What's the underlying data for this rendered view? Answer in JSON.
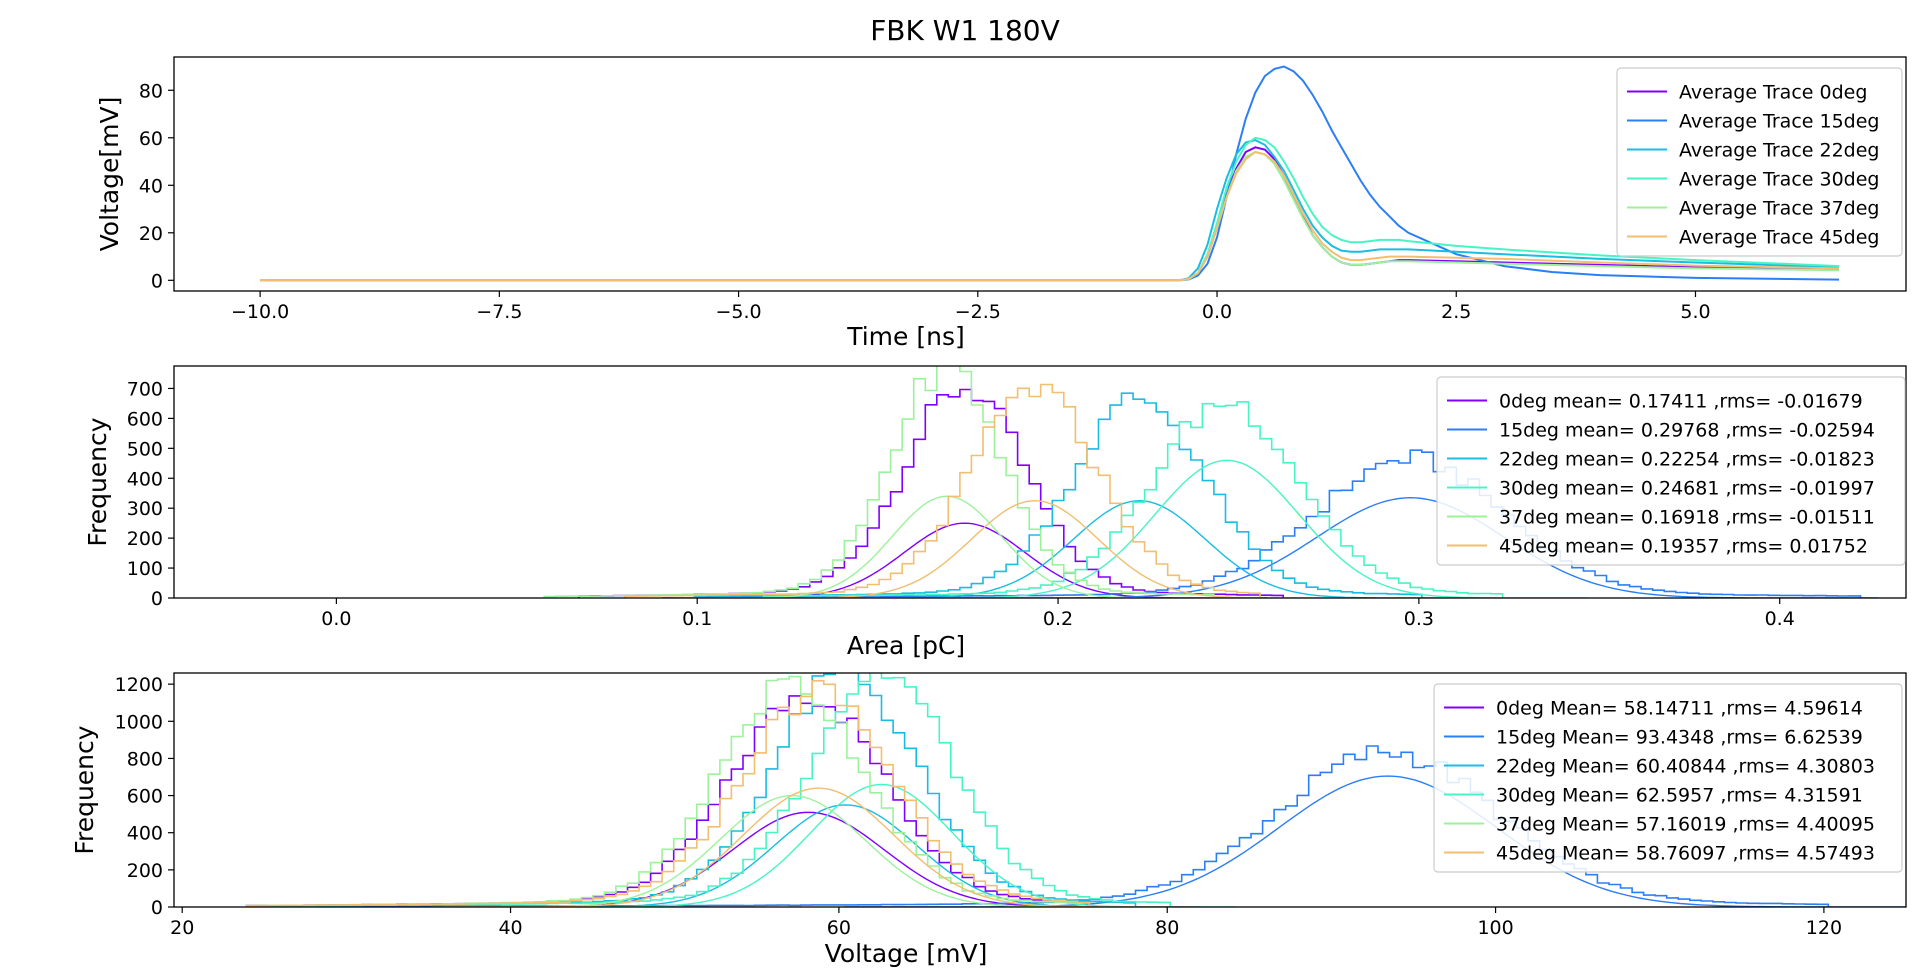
{
  "figure_title": "FBK W1 180V",
  "chart_data": [
    {
      "type": "line",
      "xlabel": "Time [ns]",
      "ylabel": "Voltage[mV]",
      "xlim": [
        -10.9,
        7.2
      ],
      "ylim": [
        -4.5,
        94
      ],
      "xticks": [
        -10.0,
        -7.5,
        -5.0,
        -2.5,
        0.0,
        2.5,
        5.0
      ],
      "xtick_labels": [
        "−10.0",
        "−7.5",
        "−5.0",
        "−2.5",
        "0.0",
        "2.5",
        "5.0"
      ],
      "yticks": [
        0,
        20,
        40,
        60,
        80
      ],
      "ytick_labels": [
        "0",
        "20",
        "40",
        "60",
        "80"
      ],
      "legend_position": "top-right",
      "grid": false,
      "series": [
        {
          "name": "Average Trace 0deg",
          "color": "#8000ff",
          "x": [
            -10,
            -0.4,
            -0.3,
            -0.2,
            -0.1,
            0.0,
            0.1,
            0.2,
            0.3,
            0.4,
            0.5,
            0.6,
            0.7,
            0.8,
            0.9,
            1.0,
            1.1,
            1.2,
            1.3,
            1.4,
            1.5,
            1.6,
            1.7,
            1.8,
            1.9,
            2.0,
            2.5,
            3.0,
            4.0,
            5.0,
            6.5
          ],
          "y": [
            0,
            0,
            0.5,
            3,
            10,
            22,
            36,
            47,
            54,
            56,
            55,
            51,
            44,
            35,
            27,
            19,
            14,
            10,
            7.5,
            6.5,
            6.5,
            7,
            7.5,
            8,
            8.5,
            8.5,
            8,
            7.5,
            6.5,
            5.5,
            4.5
          ]
        },
        {
          "name": "Average Trace 15deg",
          "color": "#2c7ef7",
          "x": [
            -10,
            -0.4,
            -0.3,
            -0.2,
            -0.1,
            0.0,
            0.1,
            0.2,
            0.3,
            0.4,
            0.5,
            0.6,
            0.7,
            0.8,
            0.9,
            1.0,
            1.1,
            1.2,
            1.3,
            1.4,
            1.5,
            1.6,
            1.7,
            1.8,
            1.9,
            2.0,
            2.5,
            3.0,
            3.5,
            4.0,
            5.0,
            6.5
          ],
          "y": [
            0,
            0,
            0.3,
            2,
            7,
            18,
            35,
            53,
            68,
            79,
            86,
            89,
            90,
            88,
            84,
            78,
            71,
            63,
            56,
            49,
            42,
            36,
            31,
            27,
            23,
            20,
            11,
            6,
            3.5,
            2.2,
            1,
            0.3
          ]
        },
        {
          "name": "Average Trace 22deg",
          "color": "#18bde1",
          "x": [
            -10,
            -0.4,
            -0.3,
            -0.2,
            -0.1,
            0.0,
            0.1,
            0.2,
            0.3,
            0.4,
            0.5,
            0.6,
            0.7,
            0.8,
            0.9,
            1.0,
            1.1,
            1.2,
            1.3,
            1.4,
            1.5,
            1.6,
            1.7,
            1.8,
            1.9,
            2.0,
            2.5,
            3.0,
            4.0,
            5.0,
            6.5
          ],
          "y": [
            0,
            0,
            0.8,
            5,
            15,
            30,
            43,
            53,
            58,
            59,
            57,
            52,
            46,
            38,
            30,
            23,
            18,
            14.5,
            12.5,
            12,
            12,
            12.5,
            13,
            13,
            13,
            13,
            12,
            11,
            9,
            7.5,
            5.5
          ]
        },
        {
          "name": "Average Trace 30deg",
          "color": "#48f4c4",
          "x": [
            -10,
            -0.4,
            -0.3,
            -0.2,
            -0.1,
            0.0,
            0.1,
            0.2,
            0.3,
            0.4,
            0.5,
            0.6,
            0.7,
            0.8,
            0.9,
            1.0,
            1.1,
            1.2,
            1.3,
            1.4,
            1.5,
            1.6,
            1.7,
            1.8,
            1.9,
            2.0,
            2.5,
            3.0,
            4.0,
            5.0,
            6.5
          ],
          "y": [
            0,
            0,
            0.4,
            3,
            11,
            24,
            39,
            50,
            57,
            60,
            59,
            56,
            50,
            43,
            35,
            28,
            22.5,
            19,
            17,
            16,
            16,
            16.5,
            17,
            17,
            17,
            16.5,
            14.5,
            13,
            10.5,
            8.5,
            6
          ]
        },
        {
          "name": "Average Trace 37deg",
          "color": "#9cf29a",
          "x": [
            -10,
            -0.4,
            -0.3,
            -0.2,
            -0.1,
            0.0,
            0.1,
            0.2,
            0.3,
            0.4,
            0.5,
            0.6,
            0.7,
            0.8,
            0.9,
            1.0,
            1.1,
            1.2,
            1.3,
            1.4,
            1.5,
            1.6,
            1.7,
            1.8,
            1.9,
            2.0,
            2.5,
            3.0,
            4.0,
            5.0,
            6.5
          ],
          "y": [
            0,
            0,
            0.5,
            3,
            10,
            22,
            35,
            46,
            52,
            54,
            53,
            49,
            42,
            34,
            26,
            19,
            14,
            10,
            7.5,
            6.5,
            6.5,
            7,
            7.5,
            8,
            8,
            8,
            7.5,
            7,
            6,
            5,
            4.2
          ]
        },
        {
          "name": "Average Trace 45deg",
          "color": "#f2be6f",
          "x": [
            -10,
            -0.4,
            -0.3,
            -0.2,
            -0.1,
            0.0,
            0.1,
            0.2,
            0.3,
            0.4,
            0.5,
            0.6,
            0.7,
            0.8,
            0.9,
            1.0,
            1.1,
            1.2,
            1.3,
            1.4,
            1.5,
            1.6,
            1.7,
            1.8,
            1.9,
            2.0,
            2.5,
            3.0,
            4.0,
            5.0,
            6.5
          ],
          "y": [
            0,
            0,
            0.5,
            3,
            10,
            22,
            35,
            45,
            51,
            54,
            53,
            50,
            44,
            36,
            28,
            21,
            15.5,
            12,
            9.5,
            8.5,
            8.5,
            9,
            9.5,
            10,
            10,
            10,
            9.5,
            9,
            7.5,
            6.2,
            5
          ]
        }
      ]
    },
    {
      "type": "histogram",
      "xlabel": "Area [pC]",
      "ylabel": "Frequency",
      "xlim": [
        -0.045,
        0.435
      ],
      "ylim": [
        0,
        775
      ],
      "xticks": [
        0.0,
        0.1,
        0.2,
        0.3,
        0.4
      ],
      "xtick_labels": [
        "0.0",
        "0.1",
        "0.2",
        "0.3",
        "0.4"
      ],
      "yticks": [
        0,
        100,
        200,
        300,
        400,
        500,
        600,
        700
      ],
      "ytick_labels": [
        "0",
        "100",
        "200",
        "300",
        "400",
        "500",
        "600",
        "700"
      ],
      "legend_position": "top-right",
      "grid": false,
      "series": [
        {
          "name": "0deg mean= 0.17411 ,rms= -0.01679",
          "color": "#8000ff",
          "mean": 0.17411,
          "sigma": 0.01679,
          "peak": 665,
          "fit_peak": 250,
          "range": [
            0.07,
            0.26
          ]
        },
        {
          "name": "15deg mean= 0.29768 ,rms= -0.02594",
          "color": "#2c7ef7",
          "mean": 0.29768,
          "sigma": 0.02594,
          "peak": 440,
          "fit_peak": 335,
          "range": [
            0.1,
            0.42
          ]
        },
        {
          "name": "22deg mean= 0.22254 ,rms= -0.01823",
          "color": "#18bde1",
          "mean": 0.22254,
          "sigma": 0.01823,
          "peak": 630,
          "fit_peak": 325,
          "range": [
            0.1,
            0.3
          ]
        },
        {
          "name": "30deg mean= 0.24681 ,rms= -0.01997",
          "color": "#48f4c4",
          "mean": 0.24681,
          "sigma": 0.01997,
          "peak": 620,
          "fit_peak": 460,
          "range": [
            0.12,
            0.32
          ]
        },
        {
          "name": "37deg mean= 0.16918 ,rms= -0.01511",
          "color": "#9cf29a",
          "mean": 0.16918,
          "sigma": 0.01511,
          "peak": 735,
          "fit_peak": 340,
          "range": [
            0.06,
            0.24
          ]
        },
        {
          "name": "45deg mean= 0.19357 ,rms= 0.01752",
          "color": "#f2be6f",
          "mean": 0.19357,
          "sigma": 0.01752,
          "peak": 660,
          "fit_peak": 325,
          "range": [
            0.08,
            0.255
          ]
        }
      ]
    },
    {
      "type": "histogram",
      "xlabel": "Voltage [mV]",
      "ylabel": "Frequency",
      "xlim": [
        19.5,
        125
      ],
      "ylim": [
        0,
        1260
      ],
      "xticks": [
        20,
        40,
        60,
        80,
        100,
        120
      ],
      "xtick_labels": [
        "20",
        "40",
        "60",
        "80",
        "100",
        "120"
      ],
      "yticks": [
        0,
        200,
        400,
        600,
        800,
        1000,
        1200
      ],
      "ytick_labels": [
        "0",
        "200",
        "400",
        "600",
        "800",
        "1000",
        "1200"
      ],
      "legend_position": "top-right",
      "grid": false,
      "series": [
        {
          "name": "0deg Mean= 58.14711 ,rms= 4.59614",
          "color": "#8000ff",
          "mean": 58.14711,
          "sigma": 4.59614,
          "peak": 1090,
          "fit_peak": 510,
          "range": [
            24,
            75
          ]
        },
        {
          "name": "15deg Mean= 93.4348 ,rms= 6.62539",
          "color": "#2c7ef7",
          "mean": 93.4348,
          "sigma": 6.62539,
          "peak": 790,
          "fit_peak": 705,
          "range": [
            24,
            120
          ]
        },
        {
          "name": "22deg Mean= 60.40844 ,rms= 4.30803",
          "color": "#18bde1",
          "mean": 60.40844,
          "sigma": 4.30803,
          "peak": 1190,
          "fit_peak": 550,
          "range": [
            26,
            78
          ]
        },
        {
          "name": "30deg Mean= 62.5957 ,rms= 4.31591",
          "color": "#48f4c4",
          "mean": 62.5957,
          "sigma": 4.31591,
          "peak": 1200,
          "fit_peak": 660,
          "range": [
            28,
            80
          ]
        },
        {
          "name": "37deg Mean= 57.16019 ,rms= 4.40095",
          "color": "#9cf29a",
          "mean": 57.16019,
          "sigma": 4.40095,
          "peak": 1140,
          "fit_peak": 600,
          "range": [
            24,
            75
          ]
        },
        {
          "name": "45deg Mean= 58.76097 ,rms= 4.57493",
          "color": "#f2be6f",
          "mean": 58.76097,
          "sigma": 4.57493,
          "peak": 1095,
          "fit_peak": 640,
          "range": [
            24,
            75
          ]
        }
      ]
    }
  ]
}
